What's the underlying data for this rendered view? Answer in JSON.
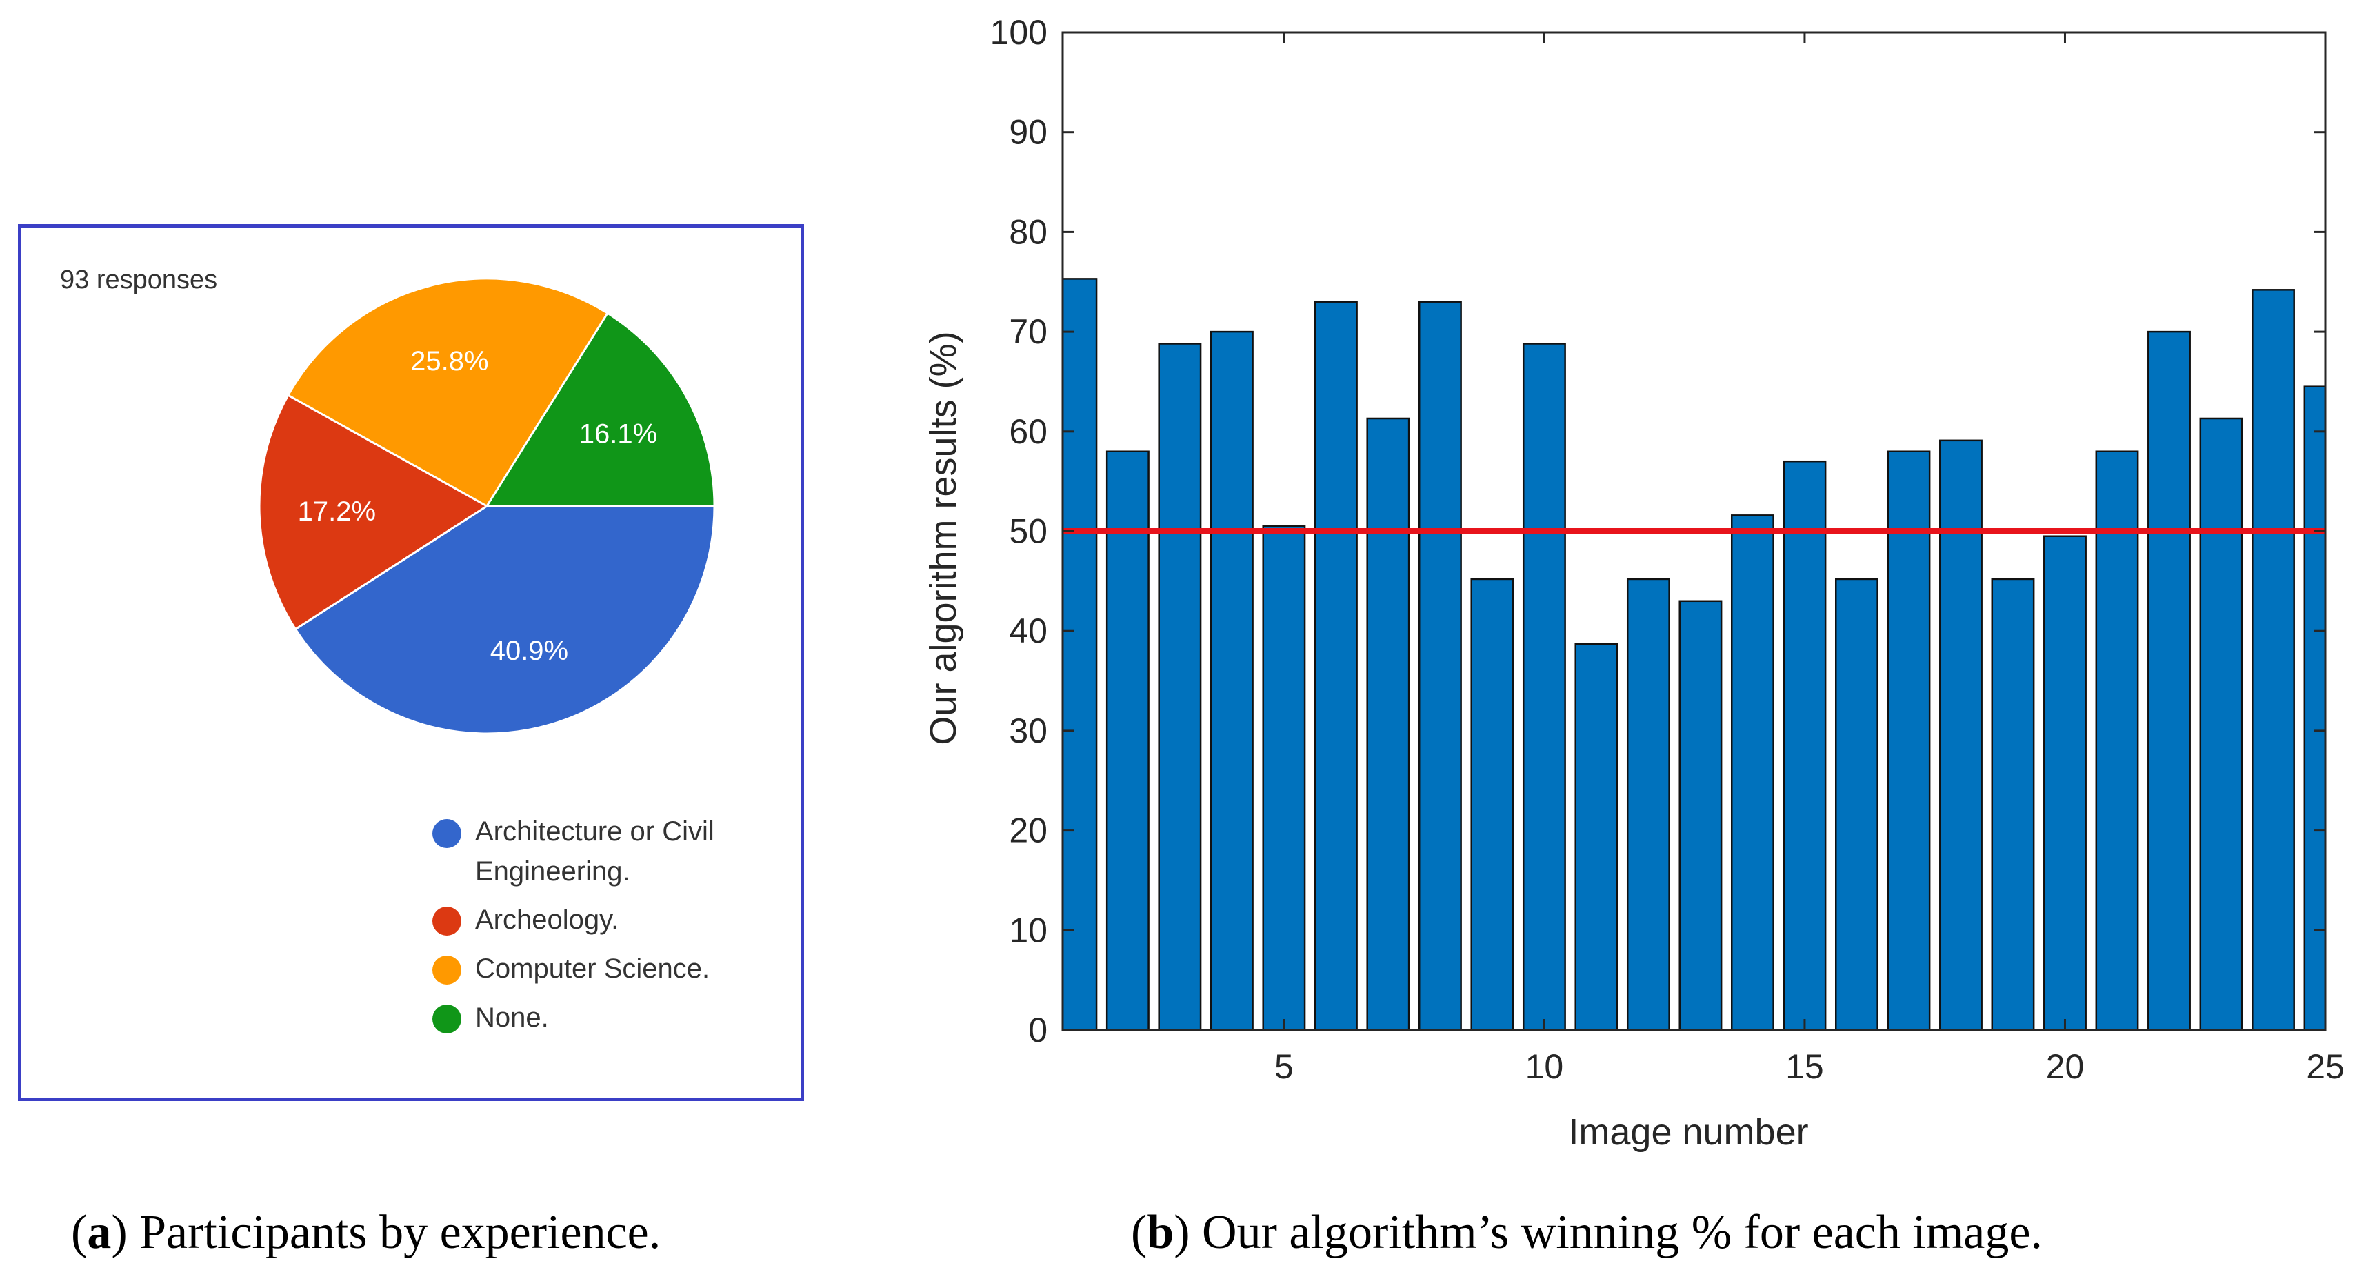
{
  "chart_data": [
    {
      "type": "pie",
      "subtitle": "93 responses",
      "categories": [
        "Architecture or Civil Engineering.",
        "Archeology.",
        "Computer Science.",
        "None."
      ],
      "values": [
        40.9,
        17.2,
        25.8,
        16.1
      ],
      "labels": [
        "40.9%",
        "17.2%",
        "25.8%",
        "16.1%"
      ],
      "colors": [
        "#3366cc",
        "#dc3912",
        "#ff9900",
        "#109618"
      ],
      "legend_position": "bottom-right",
      "caption_letter": "a",
      "caption_text": ") Participants by experience.",
      "caption_open": "("
    },
    {
      "type": "bar",
      "categories": [
        1,
        2,
        3,
        4,
        5,
        6,
        7,
        8,
        9,
        10,
        11,
        12,
        13,
        14,
        15,
        16,
        17,
        18,
        19,
        20,
        21,
        22,
        23,
        24,
        25
      ],
      "values": [
        75.3,
        58,
        68.8,
        70,
        50.5,
        73,
        61.3,
        73,
        45.2,
        68.8,
        38.7,
        45.2,
        43,
        51.6,
        57,
        45.2,
        58,
        59.1,
        45.2,
        49.5,
        58,
        70,
        61.3,
        74.2,
        64.5
      ],
      "reference_line": 50,
      "xlabel": "Image number",
      "ylabel": "Our algorithm results (%)",
      "xlim": [
        0.75,
        25
      ],
      "ylim": [
        0,
        100
      ],
      "xticks": [
        "5",
        "10",
        "15",
        "20",
        "25"
      ],
      "xtick_values": [
        5,
        10,
        15,
        20,
        25
      ],
      "yticks": [
        "0",
        "10",
        "20",
        "30",
        "40",
        "50",
        "60",
        "70",
        "80",
        "90",
        "100"
      ],
      "ytick_values": [
        0,
        10,
        20,
        30,
        40,
        50,
        60,
        70,
        80,
        90,
        100
      ],
      "bar_color": "#0072bd",
      "line_color": "#e8141c",
      "caption_letter": "b",
      "caption_text": ") Our algorithm’s winning % for each image.",
      "caption_open": "("
    }
  ]
}
